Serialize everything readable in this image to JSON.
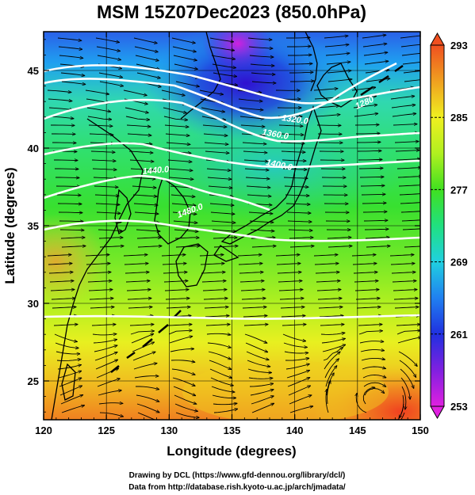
{
  "title": "MSM 15Z07Dec2023 (850.0hPa)",
  "x_axis": {
    "label": "Longitude (degrees)",
    "range": [
      120,
      150
    ],
    "ticks": [
      "120",
      "125",
      "130",
      "135",
      "140",
      "145",
      "150"
    ]
  },
  "y_axis": {
    "label": "Latitude  (degrees)",
    "range": [
      22.5,
      47.5
    ],
    "ticks": [
      "25",
      "30",
      "35",
      "40",
      "45"
    ]
  },
  "colorbar": {
    "range": [
      253,
      293
    ],
    "ticks": [
      "253",
      "261",
      "269",
      "277",
      "285",
      "293"
    ],
    "colors": [
      "#e020e0",
      "#8020e0",
      "#2030e0",
      "#2080f0",
      "#20d0e0",
      "#20e080",
      "#40e020",
      "#b0f020",
      "#f0f020",
      "#f0a020",
      "#f05020"
    ]
  },
  "contour_labels": [
    {
      "text": "1320.0"
    },
    {
      "text": "1360.0"
    },
    {
      "text": "1400.0"
    },
    {
      "text": "1440.0"
    },
    {
      "text": "1480.0"
    },
    {
      "text": "1280"
    }
  ],
  "credits": {
    "line1": "Drawing by DCL (https://www.gfd-dennou.org/library/dcl/)",
    "line2": "Data from http://database.rish.kyoto-u.ac.jp/arch/jmadata/"
  }
}
